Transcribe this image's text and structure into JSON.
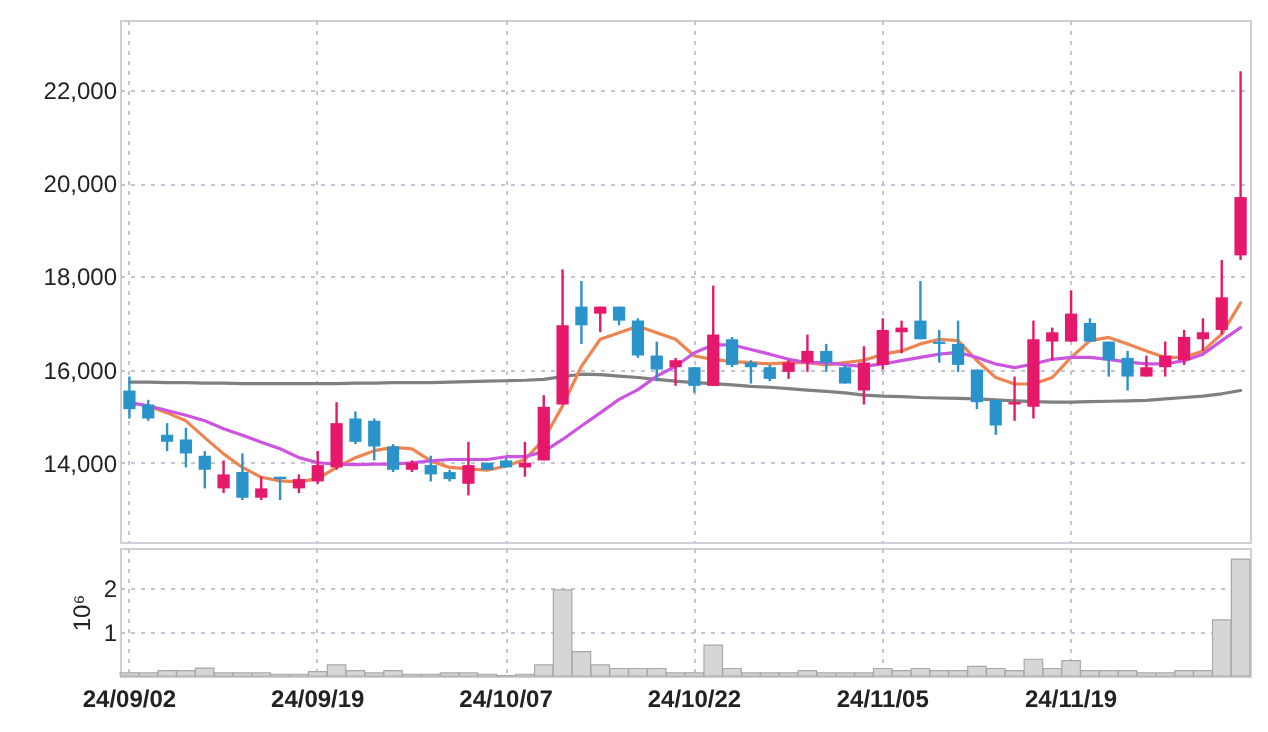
{
  "chart_data": [
    {
      "type": "candlestick",
      "categories": [
        null,
        null,
        null,
        null,
        null,
        null,
        null,
        null,
        null,
        null,
        null,
        null,
        null,
        null,
        null,
        null,
        null,
        null,
        null,
        null,
        null,
        null,
        null,
        null,
        null,
        null,
        null,
        null,
        null,
        null,
        null,
        null,
        null,
        null,
        null,
        null,
        null,
        null,
        null,
        null,
        null,
        null,
        null,
        null,
        null,
        null,
        null,
        null,
        null,
        null,
        null,
        null,
        null,
        null,
        null,
        null,
        null,
        null,
        null,
        null
      ],
      "ohlc": [
        [
          15550,
          15850,
          14950,
          15150
        ],
        [
          15250,
          15350,
          14900,
          14950
        ],
        [
          14600,
          14850,
          14250,
          14450
        ],
        [
          14500,
          14750,
          13900,
          14200
        ],
        [
          14150,
          14250,
          13450,
          13850
        ],
        [
          13450,
          14050,
          13350,
          13750
        ],
        [
          13800,
          14200,
          13200,
          13250
        ],
        [
          13250,
          13700,
          13200,
          13450
        ],
        [
          13700,
          13700,
          13200,
          13650
        ],
        [
          13450,
          13750,
          13350,
          13650
        ],
        [
          13600,
          14250,
          13550,
          13950
        ],
        [
          13900,
          15300,
          13850,
          14850
        ],
        [
          14950,
          15100,
          14400,
          14450
        ],
        [
          14900,
          14950,
          14050,
          14350
        ],
        [
          14350,
          14400,
          13800,
          13850
        ],
        [
          13850,
          14050,
          13800,
          14000
        ],
        [
          13950,
          14150,
          13600,
          13750
        ],
        [
          13800,
          13850,
          13600,
          13650
        ],
        [
          13550,
          14450,
          13300,
          13950
        ],
        [
          14000,
          14000,
          13850,
          13850
        ],
        [
          14050,
          14100,
          13900,
          13900
        ],
        [
          13900,
          14450,
          13700,
          14000
        ],
        [
          14050,
          15450,
          14050,
          15200
        ],
        [
          15250,
          18150,
          15250,
          16950
        ],
        [
          17350,
          17900,
          16550,
          16950
        ],
        [
          17200,
          17350,
          16800,
          17350
        ],
        [
          17350,
          17350,
          16950,
          17050
        ],
        [
          17050,
          17100,
          16250,
          16300
        ],
        [
          16300,
          16600,
          15750,
          16000
        ],
        [
          16050,
          16250,
          15650,
          16200
        ],
        [
          16050,
          16050,
          15500,
          15650
        ],
        [
          15650,
          17800,
          15650,
          16750
        ],
        [
          16650,
          16700,
          16050,
          16100
        ],
        [
          16150,
          16200,
          15700,
          16050
        ],
        [
          16050,
          16100,
          15750,
          15800
        ],
        [
          15950,
          16200,
          15800,
          16150
        ],
        [
          16150,
          16750,
          15950,
          16400
        ],
        [
          16400,
          16550,
          15950,
          16150
        ],
        [
          16050,
          16100,
          15700,
          15700
        ],
        [
          15550,
          16500,
          15250,
          16150
        ],
        [
          16100,
          17100,
          16000,
          16850
        ],
        [
          16800,
          17050,
          16350,
          16900
        ],
        [
          17050,
          17900,
          16650,
          16650
        ],
        [
          16600,
          16850,
          16150,
          16550
        ],
        [
          16550,
          17050,
          15950,
          16100
        ],
        [
          16000,
          16000,
          15150,
          15300
        ],
        [
          15350,
          15350,
          14600,
          14800
        ],
        [
          15250,
          15850,
          14900,
          15300
        ],
        [
          15200,
          17050,
          14950,
          16650
        ],
        [
          16600,
          16900,
          16200,
          16800
        ],
        [
          16600,
          17700,
          16600,
          17200
        ],
        [
          17000,
          17100,
          16600,
          16600
        ],
        [
          16600,
          16600,
          15850,
          16200
        ],
        [
          16250,
          16400,
          15550,
          15850
        ],
        [
          15850,
          16300,
          15850,
          16050
        ],
        [
          16050,
          16600,
          15850,
          16300
        ],
        [
          16200,
          16850,
          16100,
          16700
        ],
        [
          16650,
          17100,
          16400,
          16800
        ],
        [
          16850,
          18350,
          16750,
          17550
        ],
        [
          18450,
          22400,
          18350,
          19700
        ]
      ],
      "colors": [
        "#2a93c9",
        "#2a93c9",
        "#2a93c9",
        "#2a93c9",
        "#2a93c9",
        "#e6186b",
        "#2a93c9",
        "#e6186b",
        "#2a93c9",
        "#e6186b",
        "#e6186b",
        "#e6186b",
        "#2a93c9",
        "#2a93c9",
        "#2a93c9",
        "#e6186b",
        "#2a93c9",
        "#2a93c9",
        "#e6186b",
        "#2a93c9",
        "#2a93c9",
        "#e6186b",
        "#e6186b",
        "#e6186b",
        "#2a93c9",
        "#e6186b",
        "#2a93c9",
        "#2a93c9",
        "#2a93c9",
        "#e6186b",
        "#2a93c9",
        "#e6186b",
        "#2a93c9",
        "#2a93c9",
        "#2a93c9",
        "#e6186b",
        "#e6186b",
        "#2a93c9",
        "#2a93c9",
        "#e6186b",
        "#e6186b",
        "#e6186b",
        "#2a93c9",
        "#2a93c9",
        "#2a93c9",
        "#2a93c9",
        "#2a93c9",
        "#e6186b",
        "#e6186b",
        "#e6186b",
        "#e6186b",
        "#2a93c9",
        "#2a93c9",
        "#2a93c9",
        "#e6186b",
        "#e6186b",
        "#e6186b",
        "#e6186b",
        "#e6186b",
        "#e6186b"
      ],
      "series": [
        {
          "type": "line",
          "color": "#808080",
          "values": [
            15730,
            15730,
            15720,
            15720,
            15710,
            15710,
            15700,
            15700,
            15700,
            15700,
            15700,
            15700,
            15710,
            15710,
            15720,
            15720,
            15720,
            15730,
            15740,
            15750,
            15760,
            15770,
            15790,
            15850,
            15900,
            15890,
            15860,
            15830,
            15790,
            15750,
            15720,
            15700,
            15670,
            15640,
            15620,
            15590,
            15560,
            15530,
            15500,
            15450,
            15430,
            15420,
            15400,
            15390,
            15380,
            15370,
            15350,
            15330,
            15310,
            15300,
            15300,
            15310,
            15320,
            15330,
            15340,
            15370,
            15400,
            15430,
            15480,
            15550
          ]
        },
        {
          "type": "line",
          "color": "#ee8550",
          "values": [
            null,
            15220,
            15070,
            14900,
            14540,
            14190,
            13900,
            13690,
            13610,
            13590,
            13660,
            13900,
            14110,
            14260,
            14330,
            14300,
            14040,
            13900,
            13870,
            13840,
            13930,
            14070,
            14500,
            15220,
            16070,
            16650,
            16790,
            16930,
            16790,
            16650,
            16290,
            16220,
            16170,
            16150,
            16120,
            16150,
            16150,
            16100,
            16150,
            16200,
            16330,
            16400,
            16550,
            16650,
            16620,
            16190,
            15830,
            15690,
            15690,
            15830,
            16260,
            16620,
            16690,
            16550,
            16400,
            16260,
            16260,
            16400,
            16760,
            17430
          ]
        },
        {
          "type": "line",
          "color": "#cc55e0",
          "values": [
            15290,
            15220,
            15120,
            15020,
            14900,
            14730,
            14590,
            14440,
            14300,
            14110,
            14000,
            13970,
            13960,
            13970,
            13970,
            14000,
            14040,
            14070,
            14070,
            14070,
            14130,
            14130,
            14240,
            14500,
            14790,
            15070,
            15360,
            15570,
            15860,
            16070,
            16360,
            16530,
            16530,
            16430,
            16330,
            16220,
            16150,
            16150,
            16100,
            16070,
            16120,
            16190,
            16260,
            16330,
            16370,
            16260,
            16120,
            16040,
            16120,
            16220,
            16260,
            16260,
            16220,
            16160,
            16120,
            16120,
            16190,
            16330,
            16620,
            16900
          ]
        }
      ],
      "ylim": [
        12300,
        23500
      ],
      "yticks": [
        {
          "value": 14000,
          "label": "14,000"
        },
        {
          "value": 16000,
          "label": "16,000"
        },
        {
          "value": 18000,
          "label": "18,000"
        },
        {
          "value": 20000,
          "label": "20,000"
        },
        {
          "value": 22000,
          "label": "22,000"
        }
      ],
      "grid": true,
      "tick_labels": "y"
    },
    {
      "type": "bar",
      "categories": [
        "24/09/02",
        null,
        null,
        null,
        null,
        null,
        null,
        null,
        null,
        null,
        "24/09/19",
        null,
        null,
        null,
        null,
        null,
        null,
        null,
        null,
        null,
        "24/10/07",
        null,
        null,
        null,
        null,
        null,
        null,
        null,
        null,
        null,
        "24/10/22",
        null,
        null,
        null,
        null,
        null,
        null,
        null,
        null,
        null,
        "24/11/05",
        null,
        null,
        null,
        null,
        null,
        null,
        null,
        null,
        null,
        "24/11/19",
        null,
        null,
        null,
        null,
        null,
        null,
        null,
        null,
        null
      ],
      "values": [
        0.07,
        0.07,
        0.12,
        0.12,
        0.18,
        0.07,
        0.07,
        0.07,
        0.04,
        0.04,
        0.1,
        0.25,
        0.12,
        0.07,
        0.12,
        0.04,
        0.04,
        0.07,
        0.07,
        0.04,
        0.01,
        0.04,
        0.25,
        1.95,
        0.55,
        0.25,
        0.17,
        0.17,
        0.17,
        0.07,
        0.07,
        0.7,
        0.17,
        0.07,
        0.07,
        0.07,
        0.12,
        0.07,
        0.07,
        0.07,
        0.17,
        0.12,
        0.17,
        0.12,
        0.12,
        0.22,
        0.17,
        0.12,
        0.38,
        0.17,
        0.35,
        0.12,
        0.12,
        0.12,
        0.07,
        0.07,
        0.12,
        0.12,
        1.27,
        2.65
      ],
      "color": "#d6d6d6",
      "ylabel": "10⁶",
      "ylim": [
        0,
        2.9
      ],
      "yticks": [
        1,
        2
      ],
      "grid": true
    }
  ]
}
